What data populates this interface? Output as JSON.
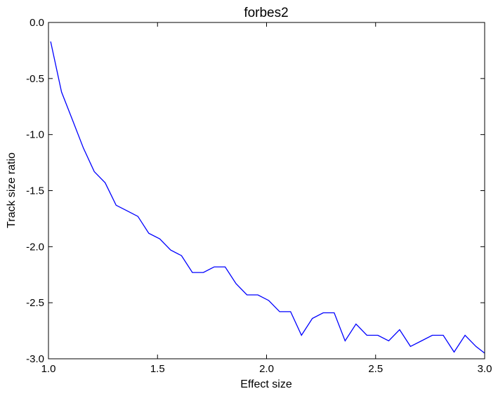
{
  "chart_data": {
    "type": "line",
    "title": "forbes2",
    "xlabel": "Effect size",
    "ylabel": "Track size ratio",
    "xlim": [
      1.0,
      3.0
    ],
    "ylim": [
      -3.0,
      0.0
    ],
    "xticks": [
      "1.0",
      "1.5",
      "2.0",
      "2.5",
      "3.0"
    ],
    "yticks": [
      "0.0",
      "-0.5",
      "-1.0",
      "-1.5",
      "-2.0",
      "-2.5",
      "-3.0"
    ],
    "grid": false,
    "series": [
      {
        "color": "#0000ff",
        "x": [
          1.01,
          1.06,
          1.11,
          1.16,
          1.21,
          1.26,
          1.31,
          1.36,
          1.41,
          1.46,
          1.51,
          1.56,
          1.61,
          1.66,
          1.71,
          1.76,
          1.81,
          1.86,
          1.91,
          1.96,
          2.01,
          2.06,
          2.11,
          2.16,
          2.21,
          2.26,
          2.31,
          2.36,
          2.41,
          2.46,
          2.51,
          2.56,
          2.61,
          2.66,
          2.71,
          2.76,
          2.81,
          2.86,
          2.91,
          2.96,
          3.0
        ],
        "y": [
          -0.17,
          -0.62,
          -0.87,
          -1.12,
          -1.33,
          -1.43,
          -1.63,
          -1.68,
          -1.73,
          -1.88,
          -1.93,
          -2.03,
          -2.08,
          -2.23,
          -2.23,
          -2.18,
          -2.18,
          -2.33,
          -2.43,
          -2.43,
          -2.48,
          -2.58,
          -2.58,
          -2.79,
          -2.64,
          -2.59,
          -2.59,
          -2.84,
          -2.69,
          -2.79,
          -2.79,
          -2.84,
          -2.74,
          -2.89,
          -2.84,
          -2.79,
          -2.79,
          -2.94,
          -2.79,
          -2.89,
          -2.95
        ]
      }
    ]
  }
}
